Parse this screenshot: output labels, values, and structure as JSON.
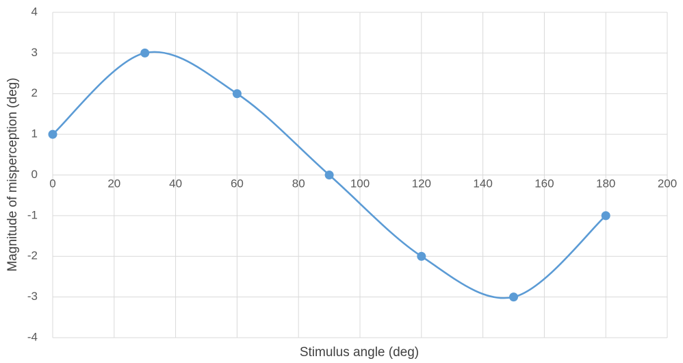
{
  "chart_data": {
    "type": "scatter",
    "title": "",
    "xlabel": "Stimulus angle (deg)",
    "ylabel": "Magnitude of misperception (deg)",
    "xlim": [
      0,
      200
    ],
    "ylim": [
      -4,
      4
    ],
    "x_ticks": [
      "0",
      "20",
      "40",
      "60",
      "80",
      "100",
      "120",
      "140",
      "160",
      "180",
      "200"
    ],
    "y_ticks": [
      "4",
      "3",
      "2",
      "1",
      "0",
      "-1",
      "-2",
      "-3",
      "-4"
    ],
    "grid": true,
    "smooth_lines": true,
    "legend": "none",
    "series": [
      {
        "color": "#5b9bd5",
        "x": [
          0,
          30,
          60,
          90,
          120,
          150,
          180
        ],
        "y": [
          1,
          3,
          2,
          0,
          -2,
          -3,
          -1
        ]
      }
    ]
  }
}
